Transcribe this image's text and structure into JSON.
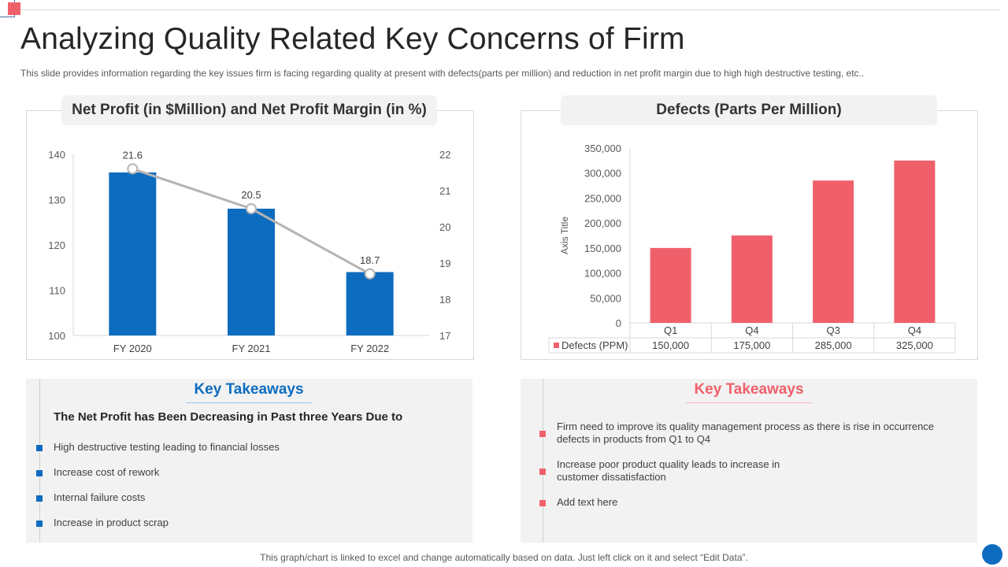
{
  "page": {
    "title": "Analyzing Quality Related Key Concerns of Firm",
    "subtitle": "This slide provides information regarding the key issues firm is facing regarding quality at present with defects(parts per million) and reduction in net profit margin due to high high destructive testing, etc..",
    "footer": "This graph/chart is linked to excel and change automatically based on data. Just left click on it and select “Edit Data”."
  },
  "colors": {
    "blue": "#0d6cbf",
    "red": "#f0606b",
    "line": "#b4b4b4",
    "panel_gray": "#f2f2f2"
  },
  "chart_data": [
    {
      "type": "bar",
      "title": "Net Profit (in $Million) and Net Profit Margin (in %)",
      "categories": [
        "FY 2020",
        "FY 2021",
        "FY 2022"
      ],
      "series": [
        {
          "name": "Net Profit (in $Million)",
          "type": "bar",
          "axis": "left",
          "values": [
            136,
            128,
            114
          ]
        },
        {
          "name": "Net Profit Margin (in %)",
          "type": "line",
          "axis": "right",
          "values": [
            21.6,
            20.5,
            18.7
          ],
          "labels": [
            "21.6",
            "20.5",
            "18.7"
          ]
        }
      ],
      "ylim": [
        100,
        140
      ],
      "yticks": [
        "140",
        "130",
        "120",
        "110",
        "100"
      ],
      "y2lim": [
        17,
        22
      ],
      "y2ticks": [
        "22",
        "21",
        "20",
        "19",
        "18",
        "17"
      ],
      "grid": false
    },
    {
      "type": "bar",
      "title": "Defects (Parts Per Million)",
      "categories": [
        "Q1",
        "Q4",
        "Q3",
        "Q4"
      ],
      "series": [
        {
          "name": "Defects (PPM)",
          "values": [
            150000,
            175000,
            285000,
            325000
          ],
          "labels": [
            "150,000",
            "175,000",
            "285,000",
            "325,000"
          ]
        }
      ],
      "ylabel": "Axis Title",
      "ylim": [
        0,
        350000
      ],
      "yticks": [
        "350,000",
        "300,000",
        "250,000",
        "200,000",
        "150,000",
        "100,000",
        "50,000",
        "0"
      ],
      "data_table": true
    }
  ],
  "takeaways_left": {
    "heading": "Key Takeaways",
    "subheading": "The Net Profit has Been Decreasing in Past three Years Due to",
    "items": [
      "High destructive testing leading to financial losses",
      "Increase cost of rework",
      "Internal failure costs",
      "Increase in product scrap"
    ]
  },
  "takeaways_right": {
    "heading": "Key Takeaways",
    "items": [
      "Firm need to improve its quality management process as there is rise in occurrence defects in products from Q1 to Q4",
      "Increase poor product quality leads to increase in customer dissatisfaction",
      "Add text here"
    ]
  }
}
